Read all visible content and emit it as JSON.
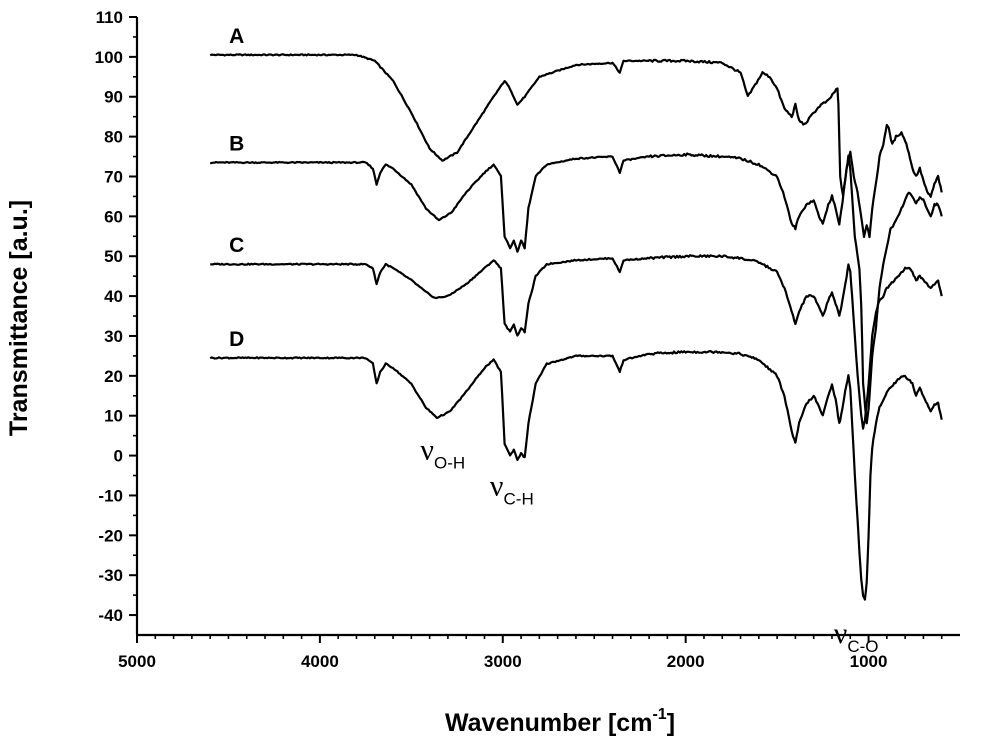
{
  "chart_data": {
    "type": "line",
    "title": "",
    "xlabel": "Wavenumber [cm",
    "xlabel_sup": "-1",
    "xlabel_end": "]",
    "ylabel": "Transmittance [a.u.]",
    "xlim": [
      5000,
      500
    ],
    "ylim": [
      -45,
      110
    ],
    "x_ticks": [
      5000,
      4000,
      3000,
      2000,
      1000
    ],
    "x_tick_labels": [
      "5000",
      "4000",
      "3000",
      "2000",
      "1000"
    ],
    "y_ticks": [
      -40,
      -30,
      -20,
      -10,
      0,
      10,
      20,
      30,
      40,
      50,
      60,
      70,
      80,
      90,
      100,
      110
    ],
    "y_tick_labels": [
      "-40",
      "-30",
      "-20",
      "-10",
      "0",
      "10",
      "20",
      "30",
      "40",
      "50",
      "60",
      "70",
      "80",
      "90",
      "100",
      "110"
    ],
    "series": [
      {
        "name": "A",
        "label": "A",
        "points": [
          [
            4600,
            100.5
          ],
          [
            3800,
            100.5
          ],
          [
            3700,
            99
          ],
          [
            3600,
            94
          ],
          [
            3500,
            86
          ],
          [
            3400,
            77
          ],
          [
            3330,
            74
          ],
          [
            3250,
            76
          ],
          [
            3150,
            83
          ],
          [
            3050,
            90
          ],
          [
            2990,
            94
          ],
          [
            2960,
            92
          ],
          [
            2920,
            88
          ],
          [
            2880,
            90
          ],
          [
            2800,
            95
          ],
          [
            2600,
            98
          ],
          [
            2400,
            98.5
          ],
          [
            2360,
            96
          ],
          [
            2340,
            99
          ],
          [
            2000,
            99
          ],
          [
            1800,
            98.5
          ],
          [
            1700,
            96
          ],
          [
            1660,
            90
          ],
          [
            1620,
            93
          ],
          [
            1580,
            96
          ],
          [
            1540,
            95
          ],
          [
            1500,
            92
          ],
          [
            1460,
            87
          ],
          [
            1420,
            85
          ],
          [
            1400,
            88
          ],
          [
            1380,
            84
          ],
          [
            1350,
            83
          ],
          [
            1300,
            86
          ],
          [
            1260,
            88
          ],
          [
            1220,
            89
          ],
          [
            1190,
            91
          ],
          [
            1170,
            92
          ],
          [
            1165,
            88
          ],
          [
            1155,
            70
          ],
          [
            1140,
            65
          ],
          [
            1120,
            72
          ],
          [
            1100,
            76
          ],
          [
            1080,
            70
          ],
          [
            1060,
            66
          ],
          [
            1040,
            60
          ],
          [
            1025,
            55
          ],
          [
            1010,
            58
          ],
          [
            995,
            55
          ],
          [
            980,
            62
          ],
          [
            960,
            68
          ],
          [
            940,
            75
          ],
          [
            920,
            78
          ],
          [
            900,
            83
          ],
          [
            890,
            82
          ],
          [
            870,
            78
          ],
          [
            850,
            80
          ],
          [
            820,
            81
          ],
          [
            800,
            79
          ],
          [
            780,
            76
          ],
          [
            760,
            72
          ],
          [
            740,
            70
          ],
          [
            720,
            72
          ],
          [
            700,
            69
          ],
          [
            680,
            66
          ],
          [
            660,
            65
          ],
          [
            640,
            68
          ],
          [
            620,
            70
          ],
          [
            600,
            66
          ]
        ]
      },
      {
        "name": "B",
        "label": "B",
        "points": [
          [
            4600,
            73.5
          ],
          [
            3750,
            73.5
          ],
          [
            3710,
            72
          ],
          [
            3690,
            68
          ],
          [
            3670,
            71
          ],
          [
            3640,
            73
          ],
          [
            3600,
            72
          ],
          [
            3500,
            68
          ],
          [
            3420,
            62
          ],
          [
            3350,
            59
          ],
          [
            3280,
            61
          ],
          [
            3200,
            66
          ],
          [
            3100,
            71
          ],
          [
            3050,
            73
          ],
          [
            3010,
            70
          ],
          [
            2990,
            55
          ],
          [
            2960,
            52
          ],
          [
            2940,
            54
          ],
          [
            2920,
            51
          ],
          [
            2900,
            54
          ],
          [
            2880,
            52
          ],
          [
            2860,
            62
          ],
          [
            2820,
            70
          ],
          [
            2760,
            73
          ],
          [
            2600,
            74.5
          ],
          [
            2400,
            75
          ],
          [
            2360,
            71
          ],
          [
            2340,
            74
          ],
          [
            2200,
            75
          ],
          [
            2000,
            75.5
          ],
          [
            1800,
            75
          ],
          [
            1700,
            74.5
          ],
          [
            1600,
            73
          ],
          [
            1500,
            70
          ],
          [
            1460,
            65
          ],
          [
            1420,
            58
          ],
          [
            1400,
            57
          ],
          [
            1380,
            60
          ],
          [
            1340,
            63
          ],
          [
            1300,
            64
          ],
          [
            1270,
            60
          ],
          [
            1250,
            58
          ],
          [
            1220,
            63
          ],
          [
            1200,
            65
          ],
          [
            1180,
            62
          ],
          [
            1160,
            58
          ],
          [
            1150,
            61
          ],
          [
            1120,
            72
          ],
          [
            1110,
            75
          ],
          [
            1100,
            72
          ],
          [
            1090,
            65
          ],
          [
            1075,
            55
          ],
          [
            1060,
            50
          ],
          [
            1050,
            47
          ],
          [
            1040,
            38
          ],
          [
            1030,
            18
          ],
          [
            1020,
            13
          ],
          [
            1010,
            8
          ],
          [
            1000,
            12
          ],
          [
            990,
            18
          ],
          [
            980,
            25
          ],
          [
            960,
            32
          ],
          [
            940,
            42
          ],
          [
            920,
            48
          ],
          [
            900,
            52
          ],
          [
            880,
            57
          ],
          [
            860,
            58
          ],
          [
            840,
            60
          ],
          [
            820,
            62
          ],
          [
            800,
            64
          ],
          [
            780,
            66
          ],
          [
            760,
            65
          ],
          [
            740,
            63
          ],
          [
            720,
            65
          ],
          [
            700,
            64
          ],
          [
            680,
            62
          ],
          [
            660,
            60
          ],
          [
            640,
            63
          ],
          [
            620,
            63
          ],
          [
            600,
            60
          ]
        ]
      },
      {
        "name": "C",
        "label": "C",
        "points": [
          [
            4600,
            48
          ],
          [
            3750,
            48
          ],
          [
            3710,
            47
          ],
          [
            3690,
            43
          ],
          [
            3670,
            46
          ],
          [
            3640,
            48
          ],
          [
            3600,
            47
          ],
          [
            3500,
            44
          ],
          [
            3420,
            41
          ],
          [
            3370,
            39.5
          ],
          [
            3300,
            40
          ],
          [
            3200,
            43
          ],
          [
            3100,
            47
          ],
          [
            3050,
            49
          ],
          [
            3010,
            47
          ],
          [
            2990,
            33
          ],
          [
            2960,
            31
          ],
          [
            2940,
            33
          ],
          [
            2920,
            30
          ],
          [
            2900,
            32
          ],
          [
            2880,
            31
          ],
          [
            2860,
            38
          ],
          [
            2820,
            45
          ],
          [
            2760,
            48
          ],
          [
            2600,
            49
          ],
          [
            2400,
            49.5
          ],
          [
            2360,
            46
          ],
          [
            2340,
            49
          ],
          [
            2200,
            49.5
          ],
          [
            2000,
            50
          ],
          [
            1800,
            50
          ],
          [
            1700,
            49.5
          ],
          [
            1600,
            48.5
          ],
          [
            1500,
            46
          ],
          [
            1460,
            42
          ],
          [
            1420,
            36
          ],
          [
            1400,
            33
          ],
          [
            1380,
            36
          ],
          [
            1340,
            40
          ],
          [
            1300,
            40
          ],
          [
            1270,
            37
          ],
          [
            1250,
            35
          ],
          [
            1220,
            39
          ],
          [
            1200,
            41
          ],
          [
            1180,
            38
          ],
          [
            1160,
            35
          ],
          [
            1150,
            37
          ],
          [
            1120,
            45
          ],
          [
            1110,
            48
          ],
          [
            1100,
            46
          ],
          [
            1090,
            40
          ],
          [
            1075,
            30
          ],
          [
            1060,
            20
          ],
          [
            1050,
            15
          ],
          [
            1040,
            10
          ],
          [
            1030,
            7
          ],
          [
            1020,
            9
          ],
          [
            1010,
            13
          ],
          [
            1000,
            18
          ],
          [
            990,
            24
          ],
          [
            980,
            30
          ],
          [
            960,
            36
          ],
          [
            940,
            39
          ],
          [
            920,
            40
          ],
          [
            900,
            42
          ],
          [
            880,
            43
          ],
          [
            860,
            44
          ],
          [
            840,
            45
          ],
          [
            820,
            46
          ],
          [
            800,
            47
          ],
          [
            780,
            47
          ],
          [
            760,
            46
          ],
          [
            740,
            44
          ],
          [
            720,
            45
          ],
          [
            700,
            44
          ],
          [
            680,
            43
          ],
          [
            660,
            42
          ],
          [
            640,
            43
          ],
          [
            620,
            44
          ],
          [
            600,
            40
          ]
        ]
      },
      {
        "name": "D",
        "label": "D",
        "points": [
          [
            4600,
            24.5
          ],
          [
            3750,
            24.5
          ],
          [
            3710,
            23
          ],
          [
            3690,
            18
          ],
          [
            3670,
            21
          ],
          [
            3640,
            23
          ],
          [
            3600,
            22
          ],
          [
            3500,
            18
          ],
          [
            3420,
            12
          ],
          [
            3360,
            9.5
          ],
          [
            3290,
            11
          ],
          [
            3200,
            16
          ],
          [
            3100,
            22
          ],
          [
            3050,
            24
          ],
          [
            3010,
            21
          ],
          [
            2990,
            3
          ],
          [
            2960,
            0
          ],
          [
            2940,
            1.5
          ],
          [
            2920,
            -1
          ],
          [
            2900,
            0.5
          ],
          [
            2880,
            -0.5
          ],
          [
            2860,
            8
          ],
          [
            2820,
            18
          ],
          [
            2760,
            23
          ],
          [
            2600,
            25
          ],
          [
            2400,
            25
          ],
          [
            2360,
            21
          ],
          [
            2340,
            24
          ],
          [
            2200,
            25.5
          ],
          [
            2000,
            26
          ],
          [
            1800,
            26
          ],
          [
            1700,
            25.5
          ],
          [
            1600,
            24
          ],
          [
            1500,
            20
          ],
          [
            1460,
            15
          ],
          [
            1420,
            6
          ],
          [
            1400,
            3
          ],
          [
            1380,
            8
          ],
          [
            1340,
            13
          ],
          [
            1300,
            15
          ],
          [
            1270,
            12
          ],
          [
            1250,
            10
          ],
          [
            1220,
            15
          ],
          [
            1200,
            18
          ],
          [
            1180,
            14
          ],
          [
            1160,
            8
          ],
          [
            1150,
            10
          ],
          [
            1120,
            18
          ],
          [
            1110,
            20
          ],
          [
            1100,
            17
          ],
          [
            1090,
            8
          ],
          [
            1075,
            -5
          ],
          [
            1060,
            -16
          ],
          [
            1050,
            -24
          ],
          [
            1040,
            -31
          ],
          [
            1030,
            -35
          ],
          [
            1020,
            -36
          ],
          [
            1010,
            -32
          ],
          [
            1000,
            -20
          ],
          [
            990,
            -5
          ],
          [
            980,
            2
          ],
          [
            960,
            8
          ],
          [
            940,
            12
          ],
          [
            920,
            14
          ],
          [
            900,
            16
          ],
          [
            880,
            17
          ],
          [
            860,
            18
          ],
          [
            840,
            19
          ],
          [
            820,
            20
          ],
          [
            800,
            20
          ],
          [
            780,
            19
          ],
          [
            760,
            18
          ],
          [
            740,
            15
          ],
          [
            720,
            17
          ],
          [
            700,
            15
          ],
          [
            680,
            13
          ],
          [
            660,
            11
          ],
          [
            640,
            13
          ],
          [
            620,
            13
          ],
          [
            600,
            9
          ]
        ]
      }
    ],
    "annotations": [
      {
        "name": "o-h",
        "main": "ν",
        "sub": "O-H",
        "x": 3330,
        "y": -1
      },
      {
        "name": "c-h",
        "main": "ν",
        "sub": "C-H",
        "x": 2950,
        "y": -10
      },
      {
        "name": "c-o",
        "main": "ν",
        "sub": "C-O",
        "x": 1070,
        "y": -47
      }
    ]
  }
}
